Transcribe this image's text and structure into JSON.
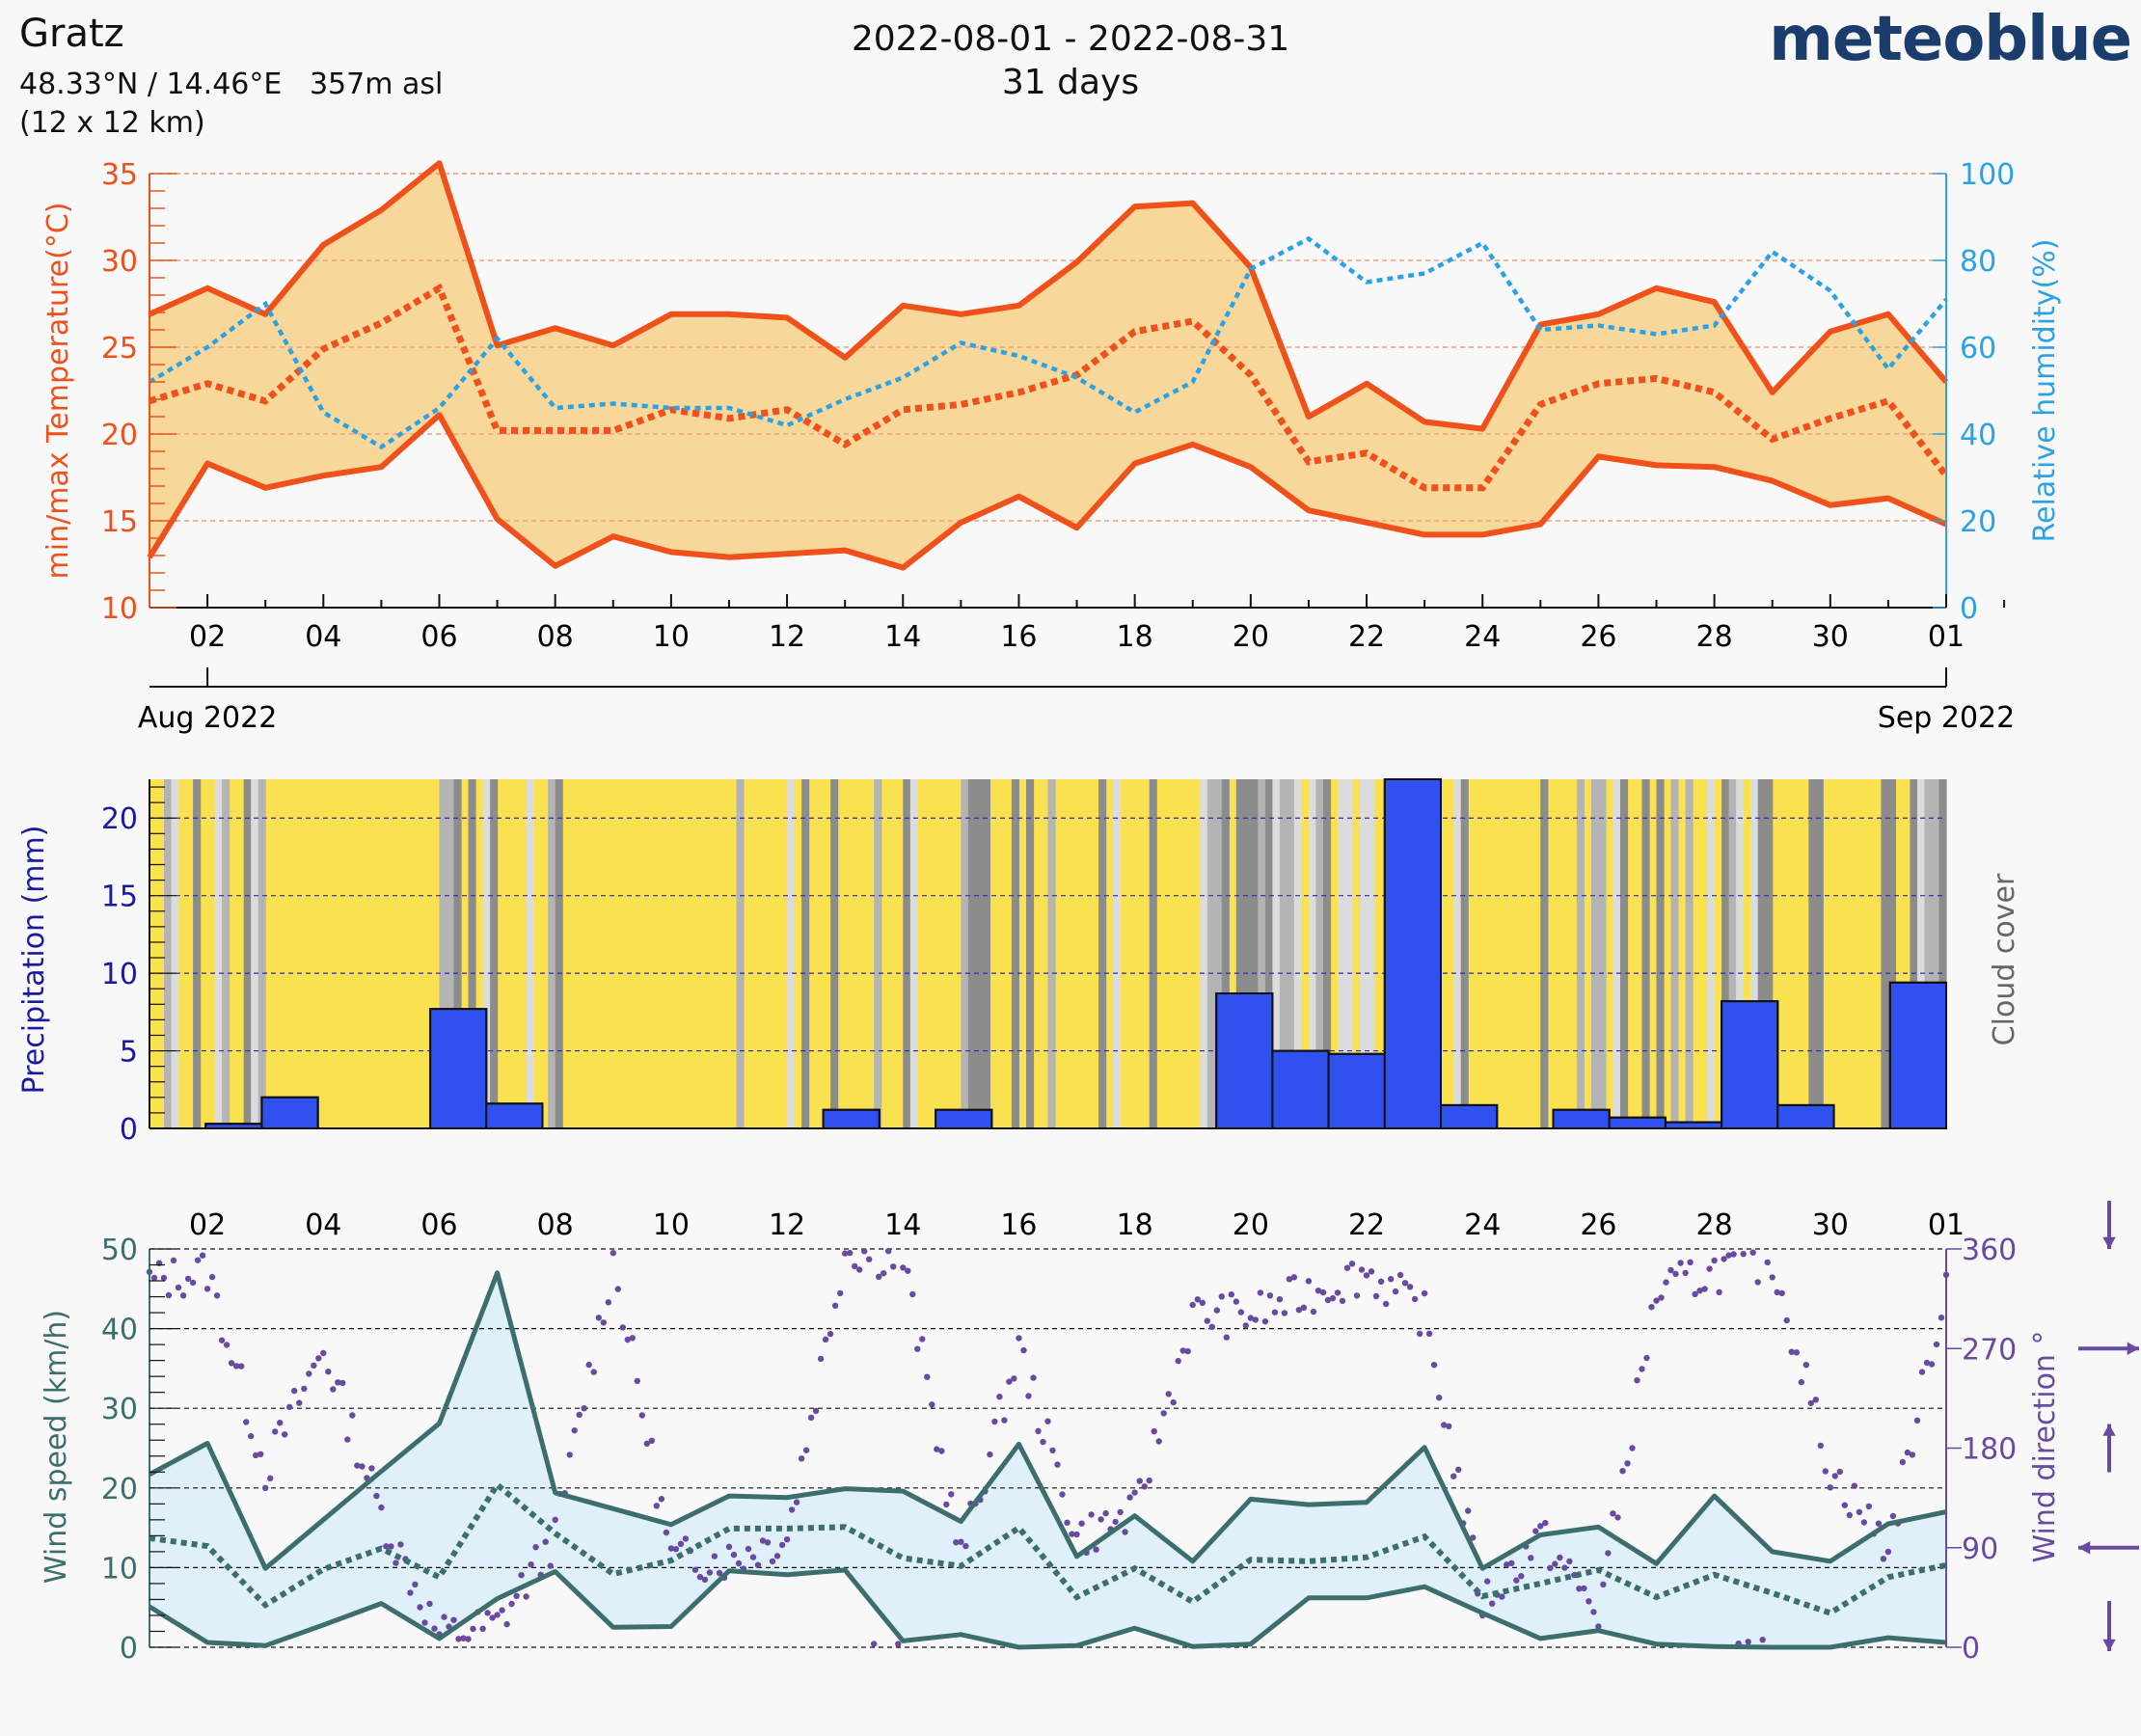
{
  "header": {
    "location": "Gratz",
    "coords": "48.33°N / 14.46°E   357m asl",
    "grid": "(12 x 12 km)",
    "date_range": "2022-08-01 - 2022-08-31",
    "days": "31 days",
    "brand": "meteoblue"
  },
  "colors": {
    "temp": "#f0501a",
    "temp_fill": "#f8d79a",
    "humidity": "#2aa3e6",
    "precip": "#3050f0",
    "sun": "#f9e150",
    "wind": "#3d6e6e",
    "wind_fill": "#dff0f8",
    "wind_dir": "#6a4aa0",
    "precip_axis": "#1a1aa0",
    "cloud": "#888888"
  },
  "x_axis": {
    "ticks": [
      "02",
      "04",
      "06",
      "08",
      "10",
      "12",
      "14",
      "16",
      "18",
      "20",
      "22",
      "24",
      "26",
      "28",
      "30",
      "01"
    ],
    "start_label": "Aug 2022",
    "end_label": "Sep 2022"
  },
  "chart_data": [
    {
      "type": "line",
      "name": "temperature-humidity",
      "x": [
        1,
        2,
        3,
        4,
        5,
        6,
        7,
        8,
        9,
        10,
        11,
        12,
        13,
        14,
        15,
        16,
        17,
        18,
        19,
        20,
        21,
        22,
        23,
        24,
        25,
        26,
        27,
        28,
        29,
        30,
        31,
        32
      ],
      "series": [
        {
          "name": "max temperature",
          "unit": "°C",
          "values": [
            26.9,
            28.4,
            26.9,
            30.9,
            32.9,
            35.6,
            25.1,
            26.1,
            25.1,
            26.9,
            26.9,
            26.7,
            24.4,
            27.4,
            26.9,
            27.4,
            29.9,
            33.1,
            33.3,
            29.6,
            21.0,
            22.9,
            20.7,
            20.3,
            26.3,
            26.9,
            28.4,
            27.6,
            22.4,
            25.9,
            26.9,
            23.0
          ]
        },
        {
          "name": "mean temperature",
          "unit": "°C",
          "values": [
            21.9,
            22.9,
            21.9,
            24.9,
            26.4,
            28.4,
            20.2,
            20.2,
            20.2,
            21.4,
            20.9,
            21.4,
            19.4,
            21.4,
            21.7,
            22.4,
            23.4,
            25.9,
            26.5,
            23.4,
            18.4,
            18.9,
            16.9,
            16.9,
            21.7,
            22.9,
            23.2,
            22.4,
            19.7,
            20.9,
            21.9,
            17.6
          ]
        },
        {
          "name": "min temperature",
          "unit": "°C",
          "values": [
            12.9,
            18.3,
            16.9,
            17.6,
            18.1,
            21.1,
            15.1,
            12.4,
            14.1,
            13.2,
            12.9,
            13.1,
            13.3,
            12.3,
            14.9,
            16.4,
            14.6,
            18.3,
            19.4,
            18.1,
            15.6,
            14.9,
            14.2,
            14.2,
            14.8,
            18.7,
            18.2,
            18.1,
            17.3,
            15.9,
            16.3,
            14.8
          ]
        },
        {
          "name": "relative humidity",
          "unit": "%",
          "values": [
            52,
            60,
            70,
            45,
            37,
            46,
            62,
            46,
            47,
            46,
            46,
            42,
            48,
            53,
            61,
            58,
            53,
            45,
            52,
            78,
            85,
            75,
            77,
            84,
            64,
            65,
            63,
            65,
            82,
            73,
            55,
            71
          ]
        }
      ],
      "ylabel": "min/max Temperature(°C)",
      "y2label": "Relative humidity(%)",
      "ylim": [
        10,
        35
      ],
      "y_ticks": [
        10,
        15,
        20,
        25,
        30,
        35
      ],
      "y2lim": [
        0,
        100
      ],
      "y2_ticks": [
        0,
        20,
        40,
        60,
        80,
        100
      ],
      "grid": "horizontal dashed"
    },
    {
      "type": "bar",
      "name": "precipitation-cloud",
      "days": [
        1,
        2,
        3,
        4,
        5,
        6,
        7,
        8,
        9,
        10,
        11,
        12,
        13,
        14,
        15,
        16,
        17,
        18,
        19,
        20,
        21,
        22,
        23,
        24,
        25,
        26,
        27,
        28,
        29,
        30,
        31,
        32
      ],
      "values": [
        0,
        0.3,
        2.0,
        0,
        0,
        7.7,
        1.6,
        0,
        0,
        0,
        0,
        0,
        1.2,
        0,
        1.2,
        0,
        0,
        0,
        0,
        8.7,
        5.0,
        4.8,
        22.5,
        1.5,
        0,
        1.2,
        0.7,
        0.4,
        8.2,
        1.5,
        0,
        9.4
      ],
      "cloud_cover": [
        0.1,
        0.3,
        0.55,
        0.05,
        0.05,
        0.1,
        0.7,
        0.2,
        0.15,
        0.05,
        0.05,
        0.05,
        0.3,
        0.25,
        0.2,
        0.45,
        0.15,
        0.1,
        0.1,
        0.7,
        0.75,
        0.8,
        0.65,
        0.5,
        0.2,
        0.3,
        0.35,
        0.55,
        0.6,
        0.25,
        0.1,
        0.7
      ],
      "ylabel": "Precipitation (mm)",
      "y2label": "Cloud cover",
      "ylim": [
        0,
        22.5
      ],
      "y_ticks": [
        0,
        5,
        10,
        15,
        20
      ],
      "grid": "horizontal dashed"
    },
    {
      "type": "line",
      "name": "wind",
      "x": [
        1,
        2,
        3,
        4,
        5,
        6,
        7,
        8,
        9,
        10,
        11,
        12,
        13,
        14,
        15,
        16,
        17,
        18,
        19,
        20,
        21,
        22,
        23,
        24,
        25,
        26,
        27,
        28,
        29,
        30,
        31,
        32
      ],
      "series": [
        {
          "name": "max wind speed",
          "unit": "km/h",
          "values": [
            21.7,
            25.6,
            9.9,
            16.0,
            22.1,
            28.1,
            47.0,
            19.4,
            17.4,
            15.4,
            19.0,
            18.8,
            19.9,
            19.6,
            15.8,
            25.5,
            11.4,
            16.5,
            10.8,
            18.6,
            17.9,
            18.2,
            25.1,
            9.9,
            14.1,
            15.1,
            10.5,
            19.0,
            12.0,
            10.8,
            15.5,
            17.0
          ]
        },
        {
          "name": "mean wind speed",
          "unit": "km/h",
          "values": [
            13.7,
            12.7,
            5.3,
            9.8,
            12.4,
            8.8,
            20.4,
            14.3,
            9.2,
            10.9,
            14.9,
            14.9,
            15.1,
            11.2,
            10.2,
            15.0,
            6.3,
            9.9,
            5.7,
            11.0,
            10.8,
            11.3,
            13.9,
            6.4,
            8.0,
            9.7,
            6.3,
            9.1,
            6.8,
            4.3,
            8.8,
            10.3
          ]
        },
        {
          "name": "min wind speed",
          "unit": "km/h",
          "values": [
            5.1,
            0.6,
            0.2,
            2.8,
            5.5,
            1.1,
            6.1,
            9.5,
            2.5,
            2.6,
            9.6,
            9.1,
            9.7,
            0.8,
            1.6,
            0.0,
            0.2,
            2.4,
            0.1,
            0.4,
            6.2,
            6.2,
            7.6,
            4.3,
            1.1,
            2.1,
            0.4,
            0.1,
            0.0,
            0.0,
            1.2,
            0.6
          ]
        },
        {
          "name": "wind direction",
          "unit": "°",
          "values": [
            330,
            340,
            160,
            270,
            120,
            10,
            20,
            100,
            350,
            80,
            80,
            100,
            360,
            350,
            80,
            270,
            100,
            120,
            300,
            300,
            320,
            340,
            300,
            40,
            100,
            30,
            320,
            340,
            350,
            160,
            90,
            330
          ]
        }
      ],
      "ylabel": "Wind speed (km/h)",
      "y2label": "Wind direction °",
      "ylim": [
        0,
        50
      ],
      "y_ticks": [
        0,
        10,
        20,
        30,
        40,
        50
      ],
      "y2lim": [
        0,
        360
      ],
      "y2_ticks": [
        0,
        90,
        180,
        270,
        360
      ],
      "grid": "horizontal dashed"
    }
  ]
}
